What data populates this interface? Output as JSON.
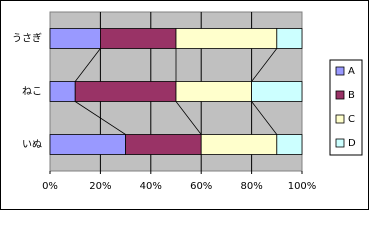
{
  "chart_data": {
    "type": "stacked-bar-horizontal-percent",
    "categories": [
      "うさぎ",
      "ねこ",
      "いぬ"
    ],
    "series": [
      {
        "name": "A",
        "color": "#9999ff",
        "values": [
          20,
          10,
          30
        ]
      },
      {
        "name": "B",
        "color": "#993366",
        "values": [
          30,
          40,
          30
        ]
      },
      {
        "name": "C",
        "color": "#ffffcc",
        "values": [
          40,
          30,
          30
        ]
      },
      {
        "name": "D",
        "color": "#ccffff",
        "values": [
          10,
          20,
          10
        ]
      }
    ],
    "xlim": [
      0,
      100
    ],
    "xticks": [
      {
        "value": 0,
        "label": "0%"
      },
      {
        "value": 20,
        "label": "20%"
      },
      {
        "value": 40,
        "label": "40%"
      },
      {
        "value": 60,
        "label": "60%"
      },
      {
        "value": 80,
        "label": "80%"
      },
      {
        "value": 100,
        "label": "100%"
      }
    ],
    "grid": true,
    "series_lines": true,
    "legend": "right"
  }
}
